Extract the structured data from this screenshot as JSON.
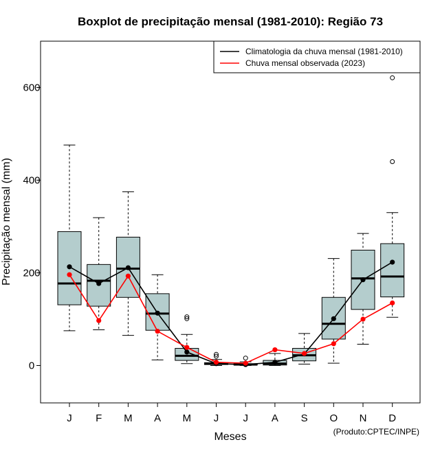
{
  "chart_data": {
    "type": "boxplot",
    "title": "Boxplot de precipitação mensal (1981-2010): Região 73",
    "xlabel": "Meses",
    "ylabel": "Precipitação mensal (mm)",
    "ylim": [
      -80,
      700
    ],
    "yticks": [
      0,
      200,
      400,
      600
    ],
    "categories": [
      "J",
      "F",
      "M",
      "A",
      "M",
      "J",
      "J",
      "A",
      "S",
      "O",
      "N",
      "D"
    ],
    "box_color": "#b4cdcd",
    "boxes": [
      {
        "whisker_low": 75,
        "q1": 131,
        "median": 177,
        "q3": 289,
        "whisker_high": 476,
        "outliers": []
      },
      {
        "whisker_low": 77,
        "q1": 128,
        "median": 183,
        "q3": 218,
        "whisker_high": 319,
        "outliers": []
      },
      {
        "whisker_low": 65,
        "q1": 147,
        "median": 209,
        "q3": 277,
        "whisker_high": 375,
        "outliers": []
      },
      {
        "whisker_low": 12,
        "q1": 76,
        "median": 112,
        "q3": 155,
        "whisker_high": 196,
        "outliers": []
      },
      {
        "whisker_low": 4,
        "q1": 11,
        "median": 21,
        "q3": 37,
        "whisker_high": 67,
        "outliers": [
          101,
          105
        ]
      },
      {
        "whisker_low": 0,
        "q1": 2,
        "median": 4,
        "q3": 6,
        "whisker_high": 13,
        "outliers": [
          20,
          24
        ]
      },
      {
        "whisker_low": 0,
        "q1": 1,
        "median": 2,
        "q3": 4,
        "whisker_high": 8,
        "outliers": [
          16
        ]
      },
      {
        "whisker_low": 0,
        "q1": 1,
        "median": 4,
        "q3": 11,
        "whisker_high": 26,
        "outliers": []
      },
      {
        "whisker_low": 3,
        "q1": 10,
        "median": 22,
        "q3": 37,
        "whisker_high": 69,
        "outliers": []
      },
      {
        "whisker_low": 5,
        "q1": 57,
        "median": 90,
        "q3": 147,
        "whisker_high": 231,
        "outliers": []
      },
      {
        "whisker_low": 46,
        "q1": 121,
        "median": 188,
        "q3": 249,
        "whisker_high": 285,
        "outliers": []
      },
      {
        "whisker_low": 104,
        "q1": 148,
        "median": 192,
        "q3": 263,
        "whisker_high": 330,
        "outliers": [
          440,
          621
        ]
      }
    ],
    "series": [
      {
        "name": "Climatologia da chuva mensal (1981-2010)",
        "color": "#000000",
        "values": [
          213,
          177,
          211,
          113,
          29,
          4,
          2,
          7,
          25,
          101,
          185,
          223
        ]
      },
      {
        "name": "Chuva mensal observada (2023)",
        "color": "#ff0000",
        "values": [
          196,
          97,
          193,
          74,
          39,
          7,
          5,
          34,
          26,
          47,
          100,
          135
        ]
      }
    ],
    "legend_position": "top-right",
    "footnote": "(Produto:CPTEC/INPE)"
  }
}
